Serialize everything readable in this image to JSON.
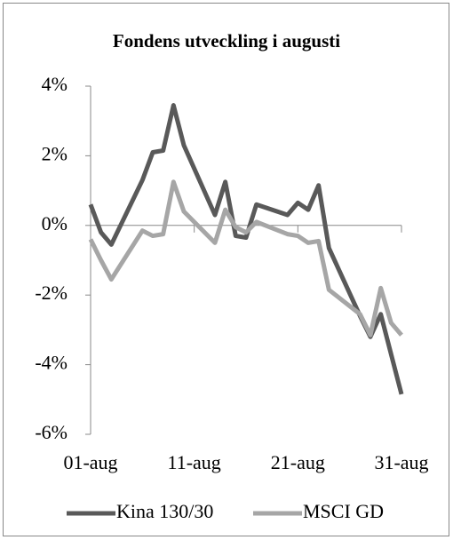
{
  "chart_data": {
    "type": "line",
    "title": "Fondens utveckling i augusti",
    "x": [
      1,
      2,
      3,
      6,
      7,
      8,
      9,
      10,
      13,
      14,
      15,
      16,
      17,
      20,
      21,
      22,
      23,
      24,
      27,
      28,
      29,
      30,
      31
    ],
    "series": [
      {
        "name": "Kina 130/30",
        "color": "#595959",
        "values": [
          0.6,
          -0.2,
          -0.55,
          1.3,
          2.1,
          2.15,
          3.45,
          2.3,
          0.3,
          1.25,
          -0.3,
          -0.35,
          0.6,
          0.3,
          0.65,
          0.45,
          1.15,
          -0.65,
          -2.6,
          -3.2,
          -2.55,
          -3.7,
          -4.85
        ]
      },
      {
        "name": "MSCI GD",
        "color": "#a6a6a6",
        "values": [
          -0.4,
          -1.0,
          -1.55,
          -0.15,
          -0.3,
          -0.25,
          1.25,
          0.4,
          -0.5,
          0.45,
          -0.05,
          -0.2,
          0.1,
          -0.25,
          -0.3,
          -0.5,
          -0.45,
          -1.85,
          -2.55,
          -3.15,
          -1.8,
          -2.8,
          -3.15
        ]
      }
    ],
    "xlim": [
      1,
      31
    ],
    "xticks": [
      {
        "value": 1,
        "label": "01-aug"
      },
      {
        "value": 11,
        "label": "11-aug"
      },
      {
        "value": 21,
        "label": "21-aug"
      },
      {
        "value": 31,
        "label": "31-aug"
      }
    ],
    "ylim": [
      -6,
      4
    ],
    "yticks": [
      {
        "value": -6,
        "label": "-6%"
      },
      {
        "value": -4,
        "label": "-4%"
      },
      {
        "value": -2,
        "label": "-2%"
      },
      {
        "value": 0,
        "label": "0%"
      },
      {
        "value": 2,
        "label": "2%"
      },
      {
        "value": 4,
        "label": "4%"
      }
    ],
    "legend": "bottom"
  }
}
